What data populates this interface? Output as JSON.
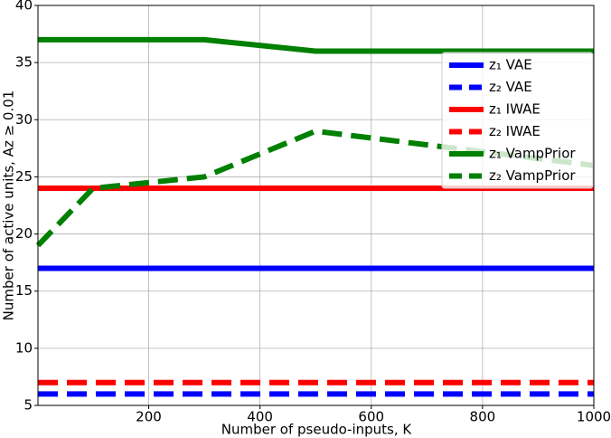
{
  "chart_data": {
    "type": "line",
    "xlabel": "Number of pseudo-inputs, K",
    "ylabel": "Number of active units, Az ≥ 0.01",
    "x": [
      1,
      100,
      300,
      500,
      1000
    ],
    "series": [
      {
        "name": "z₁ VAE",
        "color": "#0000ff",
        "style": "solid",
        "values": [
          17,
          17,
          17,
          17,
          17
        ]
      },
      {
        "name": "z₂ VAE",
        "color": "#0000ff",
        "style": "dashed",
        "values": [
          6,
          6,
          6,
          6,
          6
        ]
      },
      {
        "name": "z₁ IWAE",
        "color": "#ff0000",
        "style": "solid",
        "values": [
          24,
          24,
          24,
          24,
          24
        ]
      },
      {
        "name": "z₂ IWAE",
        "color": "#ff0000",
        "style": "dashed",
        "values": [
          7,
          7,
          7,
          7,
          7
        ]
      },
      {
        "name": "z₁ VampPrior",
        "color": "#008000",
        "style": "solid",
        "values": [
          37,
          37,
          37,
          36,
          36
        ]
      },
      {
        "name": "z₂ VampPrior",
        "color": "#008000",
        "style": "dashed",
        "values": [
          19,
          24,
          25,
          29,
          26
        ]
      }
    ],
    "xlim": [
      1,
      1000
    ],
    "xticks": [
      200,
      400,
      600,
      800,
      1000
    ],
    "ylim": [
      5,
      40
    ],
    "yticks": [
      5,
      10,
      15,
      20,
      25,
      30,
      35,
      40
    ],
    "grid": true,
    "legend": "upper right"
  }
}
